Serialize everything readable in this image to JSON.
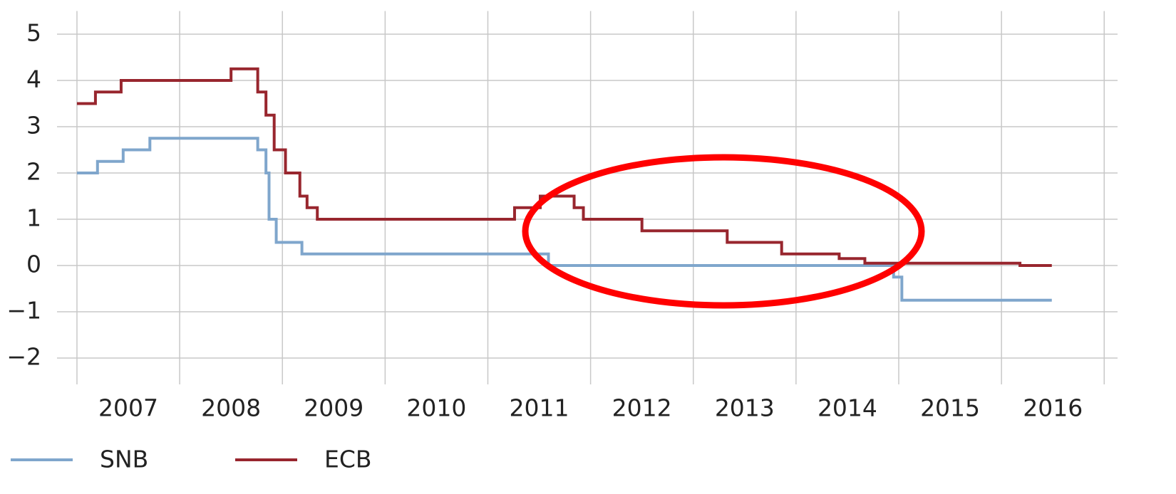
{
  "chart_data": {
    "type": "line",
    "step": "after",
    "xlim": [
      2006.806,
      2017.13
    ],
    "ylim": [
      -2.5,
      5.5
    ],
    "yticks": [
      {
        "value": -2,
        "label": "−2"
      },
      {
        "value": -1,
        "label": "−1"
      },
      0,
      1,
      2,
      3,
      4,
      5
    ],
    "xgrid": [
      2007,
      2008,
      2009,
      2010,
      2011,
      2012,
      2013,
      2014,
      2015,
      2016,
      2017
    ],
    "xticks": [
      {
        "value": 2007.5,
        "label": "2007"
      },
      {
        "value": 2008.5,
        "label": "2008"
      },
      {
        "value": 2009.5,
        "label": "2009"
      },
      {
        "value": 2010.5,
        "label": "2010"
      },
      {
        "value": 2011.5,
        "label": "2011"
      },
      {
        "value": 2012.5,
        "label": "2012"
      },
      {
        "value": 2013.5,
        "label": "2013"
      },
      {
        "value": 2014.5,
        "label": "2014"
      },
      {
        "value": 2015.5,
        "label": "2015"
      },
      {
        "value": 2016.5,
        "label": "2016"
      }
    ],
    "grid": true,
    "legend": "bottom-left",
    "series": [
      {
        "name": "SNB",
        "color": "#7fa6cc",
        "x": [
          2007.0,
          2007.2,
          2007.45,
          2007.71,
          2008.76,
          2008.84,
          2008.87,
          2008.94,
          2009.19,
          2011.59,
          2014.95,
          2015.03,
          2016.49
        ],
        "values": [
          2.0,
          2.25,
          2.5,
          2.75,
          2.5,
          2.0,
          1.0,
          0.5,
          0.25,
          0.0,
          -0.25,
          -0.75,
          -0.75
        ]
      },
      {
        "name": "ECB",
        "color": "#98262e",
        "x": [
          2007.0,
          2007.18,
          2007.43,
          2008.5,
          2008.76,
          2008.84,
          2008.92,
          2009.03,
          2009.17,
          2009.24,
          2009.34,
          2011.26,
          2011.51,
          2011.84,
          2011.93,
          2012.5,
          2013.33,
          2013.86,
          2014.42,
          2014.67,
          2016.18,
          2016.49
        ],
        "values": [
          3.5,
          3.75,
          4.0,
          4.25,
          3.75,
          3.25,
          2.5,
          2.0,
          1.5,
          1.25,
          1.0,
          1.25,
          1.5,
          1.25,
          1.0,
          0.75,
          0.5,
          0.25,
          0.15,
          0.05,
          0.0,
          0.0
        ]
      }
    ]
  }
}
